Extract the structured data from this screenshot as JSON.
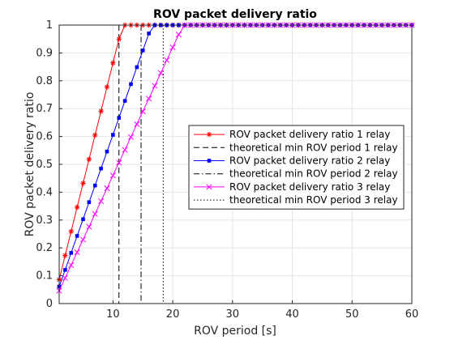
{
  "chart_data": {
    "type": "line",
    "title": "ROV packet delivery ratio",
    "xlabel": "ROV period [s]",
    "ylabel": "ROV packet delivery ratio",
    "xlim": [
      1,
      60
    ],
    "ylim": [
      0,
      1
    ],
    "xticks": [
      10,
      20,
      30,
      40,
      50,
      60
    ],
    "yticks": [
      0,
      0.1,
      0.2,
      0.3,
      0.4,
      0.5,
      0.6,
      0.7,
      0.8,
      0.9,
      1
    ],
    "grid": true,
    "legend_position": "right",
    "series": [
      {
        "name": "ROV packet delivery ratio 1 relay",
        "color": "#ff0000",
        "marker": "asterisk",
        "x": [
          1,
          2,
          3,
          4,
          5,
          6,
          7,
          8,
          9,
          10,
          11,
          12,
          13,
          14,
          15,
          16,
          17,
          18,
          19,
          20,
          21,
          22,
          23,
          24,
          25,
          26,
          27,
          28,
          29,
          30,
          31,
          32,
          33,
          34,
          35,
          36,
          37,
          38,
          39,
          40,
          41,
          42,
          43,
          44,
          45,
          46,
          47,
          48,
          49,
          50,
          51,
          52,
          53,
          54,
          55,
          56,
          57,
          58,
          59,
          60
        ],
        "y": [
          0.086,
          0.173,
          0.259,
          0.346,
          0.432,
          0.518,
          0.605,
          0.691,
          0.778,
          0.864,
          0.95,
          1,
          1,
          1,
          1,
          1,
          1,
          1,
          1,
          1,
          1,
          1,
          1,
          1,
          1,
          1,
          1,
          1,
          1,
          1,
          1,
          1,
          1,
          1,
          1,
          1,
          1,
          1,
          1,
          1,
          1,
          1,
          1,
          1,
          1,
          1,
          1,
          1,
          1,
          1,
          1,
          1,
          1,
          1,
          1,
          1,
          1,
          1,
          1,
          1
        ]
      },
      {
        "name": "ROV packet delivery ratio 2 relay",
        "color": "#0000ff",
        "marker": "square",
        "x": [
          1,
          2,
          3,
          4,
          5,
          6,
          7,
          8,
          9,
          10,
          11,
          12,
          13,
          14,
          15,
          16,
          17,
          18,
          19,
          20,
          21,
          22,
          23,
          24,
          25,
          26,
          27,
          28,
          29,
          30,
          31,
          32,
          33,
          34,
          35,
          36,
          37,
          38,
          39,
          40,
          41,
          42,
          43,
          44,
          45,
          46,
          47,
          48,
          49,
          50,
          51,
          52,
          53,
          54,
          55,
          56,
          57,
          58,
          59,
          60
        ],
        "y": [
          0.061,
          0.121,
          0.182,
          0.243,
          0.303,
          0.364,
          0.424,
          0.485,
          0.546,
          0.606,
          0.667,
          0.728,
          0.788,
          0.849,
          0.909,
          0.97,
          1,
          1,
          1,
          1,
          1,
          1,
          1,
          1,
          1,
          1,
          1,
          1,
          1,
          1,
          1,
          1,
          1,
          1,
          1,
          1,
          1,
          1,
          1,
          1,
          1,
          1,
          1,
          1,
          1,
          1,
          1,
          1,
          1,
          1,
          1,
          1,
          1,
          1,
          1,
          1,
          1,
          1,
          1,
          1
        ]
      },
      {
        "name": "ROV packet delivery ratio 3 relay",
        "color": "#ff00ff",
        "marker": "x",
        "x": [
          1,
          2,
          3,
          4,
          5,
          6,
          7,
          8,
          9,
          10,
          11,
          12,
          13,
          14,
          15,
          16,
          17,
          18,
          19,
          20,
          21,
          22,
          23,
          24,
          25,
          26,
          27,
          28,
          29,
          30,
          31,
          32,
          33,
          34,
          35,
          36,
          37,
          38,
          39,
          40,
          41,
          42,
          43,
          44,
          45,
          46,
          47,
          48,
          49,
          50,
          51,
          52,
          53,
          54,
          55,
          56,
          57,
          58,
          59,
          60
        ],
        "y": [
          0.046,
          0.092,
          0.138,
          0.184,
          0.23,
          0.276,
          0.322,
          0.368,
          0.414,
          0.46,
          0.506,
          0.552,
          0.598,
          0.644,
          0.69,
          0.736,
          0.782,
          0.828,
          0.874,
          0.92,
          0.966,
          1,
          1,
          1,
          1,
          1,
          1,
          1,
          1,
          1,
          1,
          1,
          1,
          1,
          1,
          1,
          1,
          1,
          1,
          1,
          1,
          1,
          1,
          1,
          1,
          1,
          1,
          1,
          1,
          1,
          1,
          1,
          1,
          1,
          1,
          1,
          1,
          1,
          1,
          1
        ]
      }
    ],
    "reference_lines": [
      {
        "name": "theoretical min ROV period 1 relay",
        "x": 11,
        "dash": "dashed",
        "color": "#000000"
      },
      {
        "name": "theoretical min ROV period 2 relay",
        "x": 14.7,
        "dash": "dashdot",
        "color": "#000000"
      },
      {
        "name": "theoretical min ROV period 3 relay",
        "x": 18.4,
        "dash": "dotted",
        "color": "#000000"
      }
    ]
  }
}
